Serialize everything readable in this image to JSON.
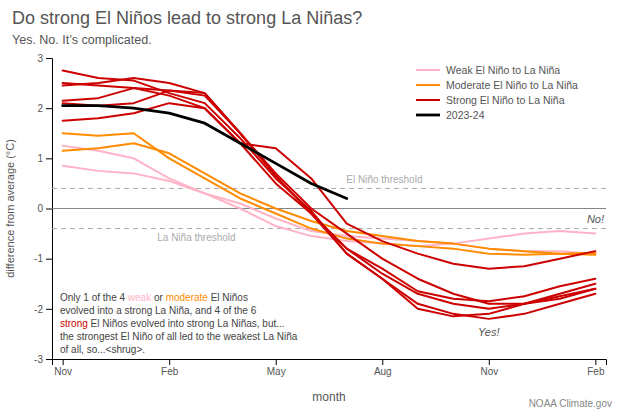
{
  "chart_data": {
    "type": "line",
    "title": "Do strong El Niños lead to strong La Niñas?",
    "subtitle": "Yes. No. It’s complicated.",
    "x_label": "month",
    "y_label": "difference from average (°C)",
    "categories": [
      "Nov",
      null,
      null,
      "Feb",
      null,
      null,
      "May",
      null,
      null,
      "Aug",
      null,
      null,
      "Nov",
      null,
      null,
      "Feb"
    ],
    "ylim": [
      -3,
      3
    ],
    "yticks": [
      -3,
      -2,
      -1,
      0,
      1,
      2,
      3
    ],
    "grid": false,
    "legend": "upper right",
    "series": [
      {
        "name": "Weak El Niño to La Niña",
        "color": "#ffb3c6",
        "values": [
          0.85,
          0.75,
          0.7,
          0.55,
          0.3,
          0.0,
          -0.35,
          -0.55,
          -0.65,
          -0.7,
          -0.75,
          -0.7,
          -0.6,
          -0.5,
          -0.45,
          -0.5
        ]
      },
      {
        "name": "Weak El Niño to La Niña",
        "color": "#ffb3c6",
        "values": [
          1.25,
          1.15,
          1.0,
          0.6,
          0.3,
          0.1,
          -0.2,
          -0.45,
          -0.55,
          -0.6,
          -0.65,
          -0.7,
          -0.8,
          -0.85,
          -0.85,
          -0.9
        ]
      },
      {
        "name": "Moderate El Niño to La Niña",
        "color": "#ff8c00",
        "values": [
          1.5,
          1.45,
          1.5,
          1.0,
          0.6,
          0.2,
          -0.1,
          -0.4,
          -0.6,
          -0.7,
          -0.75,
          -0.8,
          -0.9,
          -0.92,
          -0.9,
          -0.88
        ]
      },
      {
        "name": "Moderate El Niño to La Niña",
        "color": "#ff8c00",
        "values": [
          1.15,
          1.2,
          1.3,
          1.1,
          0.7,
          0.3,
          0.0,
          -0.25,
          -0.45,
          -0.55,
          -0.65,
          -0.7,
          -0.8,
          -0.85,
          -0.9,
          -0.92
        ]
      },
      {
        "name": "Strong El Niño to La Niña",
        "color": "#cc0000",
        "values": [
          2.1,
          2.05,
          2.1,
          2.35,
          2.3,
          1.5,
          0.7,
          0.0,
          -0.5,
          -1.0,
          -1.4,
          -1.7,
          -1.9,
          -1.9,
          -1.75,
          -1.6
        ]
      },
      {
        "name": "Strong El Niño to La Niña",
        "color": "#cc0000",
        "values": [
          2.15,
          2.2,
          2.4,
          2.35,
          2.25,
          1.5,
          0.65,
          -0.1,
          -0.8,
          -1.3,
          -1.7,
          -1.9,
          -2.0,
          -1.9,
          -1.7,
          -1.5
        ]
      },
      {
        "name": "Strong El Niño to La Niña",
        "color": "#cc0000",
        "values": [
          2.45,
          2.5,
          2.6,
          2.5,
          2.3,
          1.5,
          0.65,
          -0.1,
          -0.9,
          -1.4,
          -1.9,
          -2.1,
          -2.2,
          -2.1,
          -1.9,
          -1.7
        ]
      },
      {
        "name": "Strong El Niño to La Niña",
        "color": "#cc0000",
        "values": [
          2.75,
          2.6,
          2.55,
          2.3,
          2.1,
          1.4,
          0.6,
          -0.05,
          -0.9,
          -1.4,
          -2.0,
          -2.15,
          -2.1,
          -1.9,
          -1.8,
          -1.6
        ]
      },
      {
        "name": "Strong El Niño to La Niña",
        "color": "#cc0000",
        "values": [
          1.75,
          1.8,
          1.9,
          2.1,
          2.0,
          1.3,
          0.5,
          -0.1,
          -0.8,
          -1.2,
          -1.65,
          -1.8,
          -1.85,
          -1.75,
          -1.55,
          -1.4
        ]
      },
      {
        "name": "Strong El Niño to La Niña",
        "color": "#cc0000",
        "values": [
          2.5,
          2.45,
          2.4,
          2.25,
          2.0,
          1.3,
          1.2,
          0.6,
          -0.3,
          -0.65,
          -0.9,
          -1.1,
          -1.2,
          -1.15,
          -1.0,
          -0.85
        ]
      },
      {
        "name": "2023-24",
        "color": "#000000",
        "values": [
          2.05,
          2.05,
          2.0,
          1.9,
          1.7,
          1.3,
          0.9,
          0.5,
          0.2,
          null,
          null,
          null,
          null,
          null,
          null,
          null
        ]
      }
    ],
    "reference_lines": [
      {
        "value": 0.4,
        "label": "El Niño threshold",
        "line_style": "dashed"
      },
      {
        "value": -0.4,
        "label": "La Niña threshold",
        "line_style": "dashed"
      },
      {
        "value": 0,
        "line_style": "solid"
      }
    ],
    "annotations": [
      {
        "text": "Yes!"
      },
      {
        "text": "No!"
      }
    ],
    "annotation": [
      [
        {
          "text": "Only 1 of the 4 ",
          "color": "#444444"
        },
        {
          "text": "weak",
          "color": "#ffb3c6"
        },
        {
          "text": " or ",
          "color": "#444444"
        },
        {
          "text": "moderate",
          "color": "#ff8c00"
        },
        {
          "text": " El Niños",
          "color": "#444444"
        }
      ],
      [
        {
          "text": "evolved into a strong La Niña, and 4 of the 6",
          "color": "#444444"
        }
      ],
      [
        {
          "text": "strong",
          "color": "#cc0000"
        },
        {
          "text": " El Niños evolved into strong La Niñas, but...",
          "color": "#444444"
        }
      ],
      [
        {
          "text": "the strongest El Niño of all led to the weakest La Niña",
          "color": "#444444"
        }
      ],
      [
        {
          "text": "of all, so...<shrug>.",
          "color": "#444444"
        }
      ]
    ],
    "footnote": "NOAA Climate.gov"
  }
}
